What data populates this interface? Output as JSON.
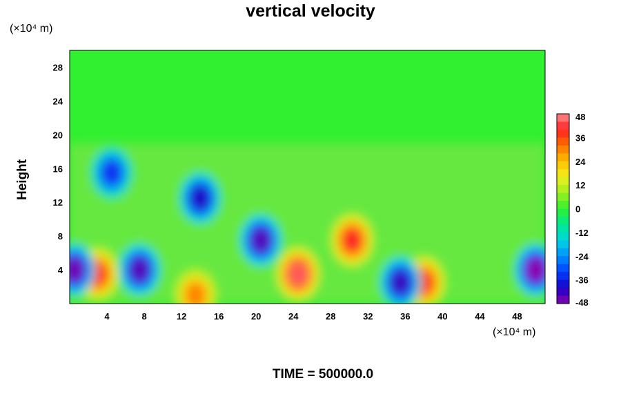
{
  "chart_data": {
    "type": "heatmap",
    "title": "vertical velocity",
    "ylabel": "Height",
    "y_unit_label": "(×10⁴ m)",
    "x_unit_label": "(×10⁴ m)",
    "footer": "TIME = 500000.0",
    "x_ticks": [
      "4",
      "8",
      "12",
      "16",
      "20",
      "24",
      "28",
      "32",
      "36",
      "40",
      "44",
      "48"
    ],
    "y_ticks": [
      "4",
      "8",
      "12",
      "16",
      "20",
      "24",
      "28"
    ],
    "xlim": [
      0,
      51
    ],
    "ylim": [
      0,
      30
    ],
    "colorbar": {
      "ticks": [
        "48",
        "36",
        "24",
        "12",
        "0",
        "-12",
        "-24",
        "-36",
        "-48"
      ],
      "range": [
        -48,
        48
      ]
    },
    "features": [
      {
        "x": 30.3,
        "y": 7.5,
        "value": 40
      },
      {
        "x": 24.5,
        "y": 3.5,
        "value": 44
      },
      {
        "x": 38.0,
        "y": 2.5,
        "value": 38
      },
      {
        "x": 3.0,
        "y": 3.5,
        "value": 38
      },
      {
        "x": 13.5,
        "y": 1.0,
        "value": 30
      },
      {
        "x": 7.5,
        "y": 4.0,
        "value": -44
      },
      {
        "x": 50.0,
        "y": 4.0,
        "value": -48
      },
      {
        "x": 0.5,
        "y": 4.0,
        "value": -46
      },
      {
        "x": 14.0,
        "y": 12.5,
        "value": -40
      },
      {
        "x": 20.5,
        "y": 7.5,
        "value": -44
      },
      {
        "x": 4.5,
        "y": 15.5,
        "value": -34
      },
      {
        "x": 35.5,
        "y": 2.5,
        "value": -42
      }
    ],
    "grid": false,
    "legend": "colorbar-right"
  }
}
